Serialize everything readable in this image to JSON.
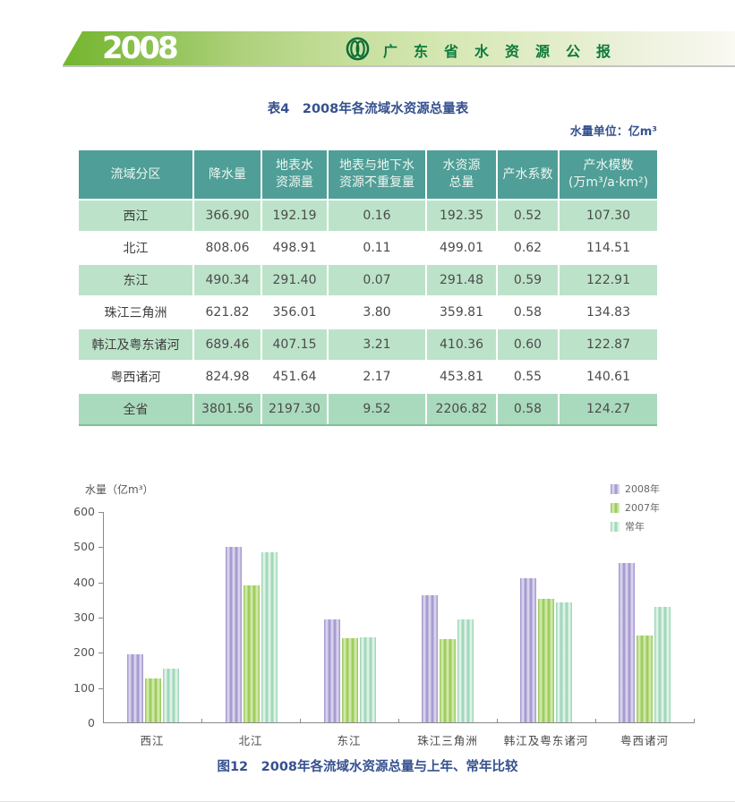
{
  "banner": {
    "year": "2008",
    "title": "广东省水资源公报",
    "logo": "water-resources-emblem",
    "colors": {
      "banner_green": "#74b52e",
      "title_green": "#0e7a3b"
    }
  },
  "table_section": {
    "title": "表4　2008年各流域水资源总量表",
    "unit_note": "水量单位：亿m³"
  },
  "table": {
    "headers": [
      "流域分区",
      "降水量",
      "地表水\n资源量",
      "地表与地下水\n资源不重复量",
      "水资源\n总量",
      "产水系数",
      "产水模数\n(万m³/a·km²)"
    ],
    "rows": [
      {
        "name": "西江",
        "values": [
          "366.90",
          "192.19",
          "0.16",
          "192.35",
          "0.52",
          "107.30"
        ]
      },
      {
        "name": "北江",
        "values": [
          "808.06",
          "498.91",
          "0.11",
          "499.01",
          "0.62",
          "114.51"
        ]
      },
      {
        "name": "东江",
        "values": [
          "490.34",
          "291.40",
          "0.07",
          "291.48",
          "0.59",
          "122.91"
        ]
      },
      {
        "name": "珠江三角洲",
        "values": [
          "621.82",
          "356.01",
          "3.80",
          "359.81",
          "0.58",
          "134.83"
        ]
      },
      {
        "name": "韩江及粤东诸河",
        "values": [
          "689.46",
          "407.15",
          "3.21",
          "410.36",
          "0.60",
          "122.87"
        ]
      },
      {
        "name": "粤西诸河",
        "values": [
          "824.98",
          "451.64",
          "2.17",
          "453.81",
          "0.55",
          "140.61"
        ]
      },
      {
        "name": "全省",
        "values": [
          "3801.56",
          "2197.30",
          "9.52",
          "2206.82",
          "0.58",
          "124.27"
        ]
      }
    ]
  },
  "chart_data": {
    "type": "bar",
    "title": "",
    "xlabel": "",
    "ylabel": "水量（亿m³）",
    "ylim": [
      0,
      600
    ],
    "yticks": [
      0,
      100,
      200,
      300,
      400,
      500,
      600
    ],
    "grid": false,
    "legend_position": "top-right",
    "categories": [
      "西江",
      "北江",
      "东江",
      "珠江三角洲",
      "韩江及粤东诸河",
      "粤西诸河"
    ],
    "series": [
      {
        "name": "2008年",
        "color": "#9c8fc9",
        "values": [
          192.35,
          499.01,
          291.48,
          359.81,
          410.36,
          453.81
        ]
      },
      {
        "name": "2007年",
        "color": "#92c74c",
        "values": [
          125,
          389,
          238,
          236,
          351,
          246
        ]
      },
      {
        "name": "常年",
        "color": "#92d2b0",
        "values": [
          153,
          482,
          241,
          292,
          341,
          328
        ]
      }
    ]
  },
  "caption": "图12　2008年各流域水资源总量与上年、常年比较"
}
